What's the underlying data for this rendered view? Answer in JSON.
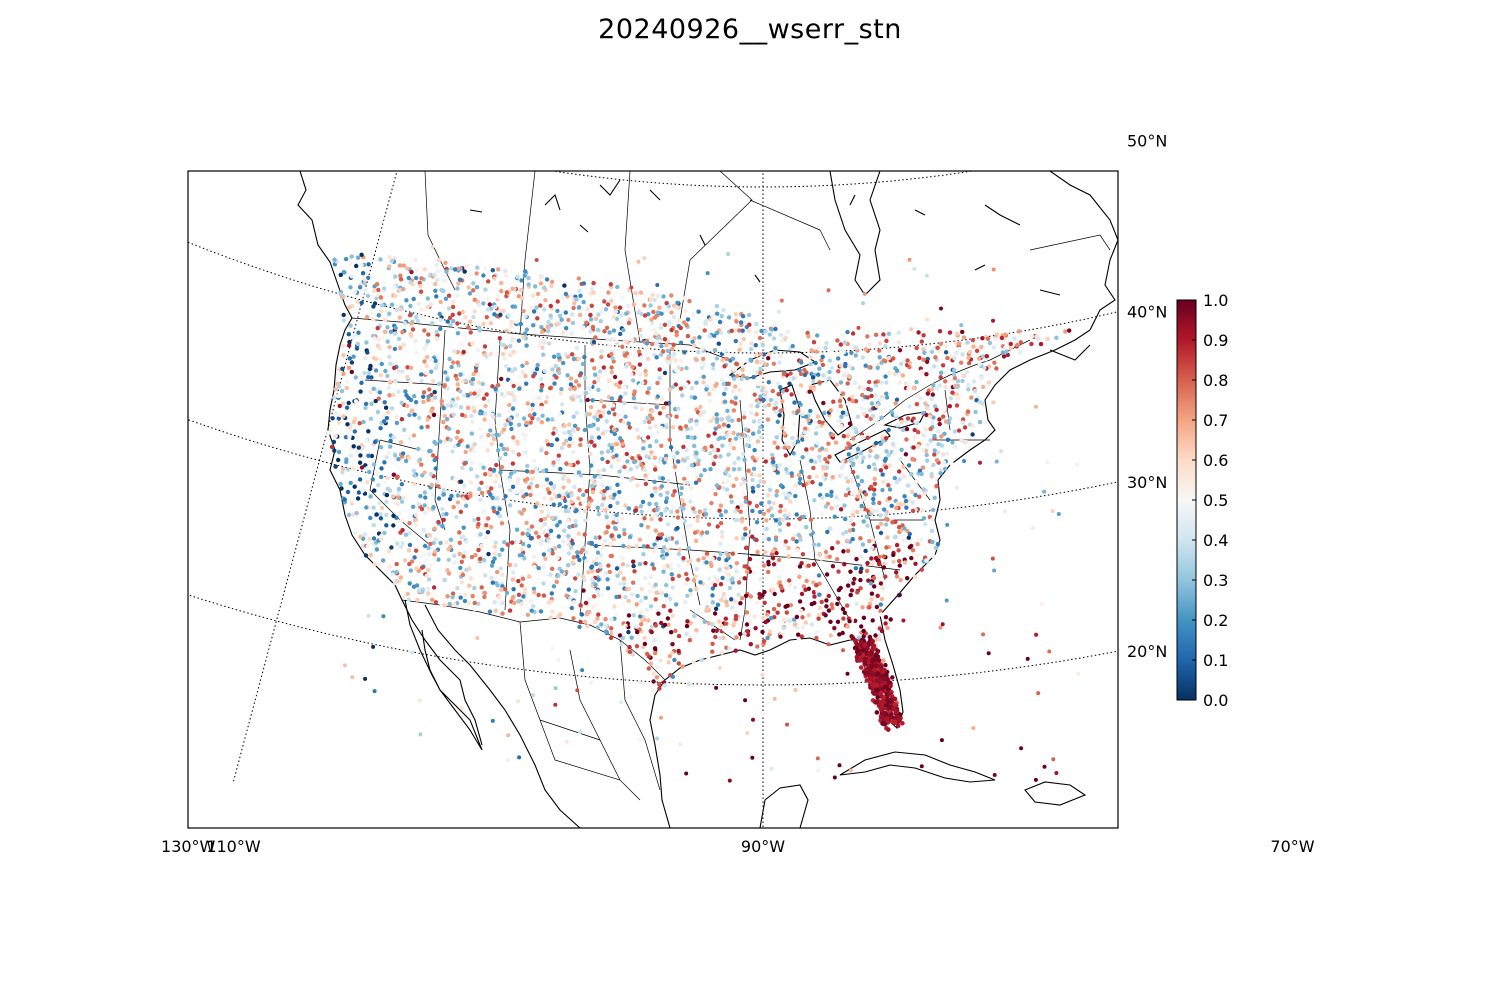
{
  "title": "20240926__wserr_stn",
  "map": {
    "projection": "lambert-conformal",
    "meridian_labels": [
      {
        "lon": -130,
        "text": "130°W"
      },
      {
        "lon": -110,
        "text": "110°W"
      },
      {
        "lon": -90,
        "text": "90°W"
      },
      {
        "lon": -70,
        "text": "70°W"
      }
    ],
    "parallel_labels": [
      {
        "lat": 50,
        "text": "50°N"
      },
      {
        "lat": 40,
        "text": "40°N"
      },
      {
        "lat": 30,
        "text": "30°N"
      },
      {
        "lat": 20,
        "text": "20°N"
      }
    ],
    "gridline_style": "dotted",
    "point_colormap": "RdBu_r",
    "notable_concentration": "Florida, Gulf Coast and Southeast stations predominantly near 1.0 (dark red); West Coast stations predominantly low (blue)"
  },
  "colorbar": {
    "orientation": "vertical",
    "min": 0.0,
    "max": 1.0,
    "ticks": [
      "0.0",
      "0.1",
      "0.2",
      "0.3",
      "0.4",
      "0.5",
      "0.6",
      "0.7",
      "0.8",
      "0.9",
      "1.0"
    ],
    "colors": [
      "#053061",
      "#2166ac",
      "#4393c3",
      "#92c5de",
      "#d1e5f0",
      "#f7f7f7",
      "#fddbc7",
      "#f4a582",
      "#d6604d",
      "#b2182b",
      "#67001f"
    ]
  }
}
